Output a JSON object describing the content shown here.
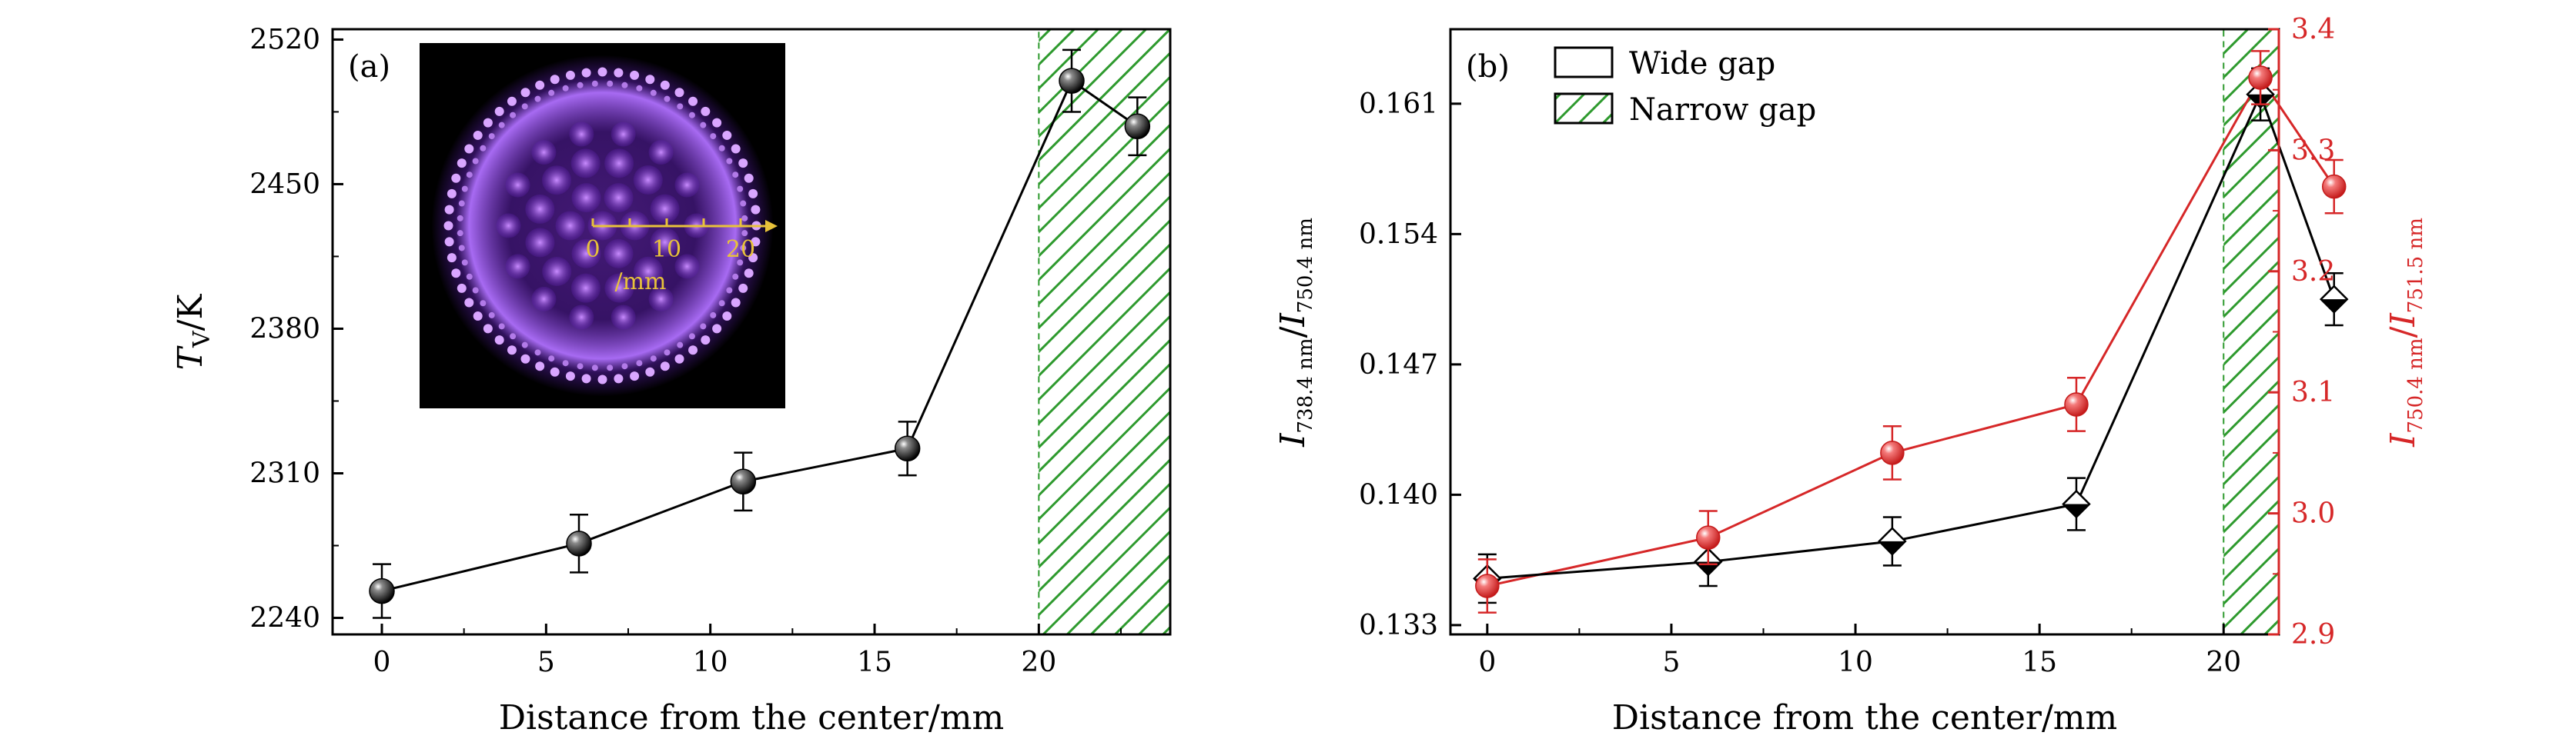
{
  "colors": {
    "black": "#000000",
    "red": "#d62728",
    "hatch_green": "#2e9a2e",
    "inset_bg": "#000000",
    "inset_glow": "#8a3ce0",
    "inset_arrow": "#e8c23a"
  },
  "chart_data": [
    {
      "type": "scatter",
      "panel_label": "(a)",
      "title": "",
      "xlabel": "Distance from the center/mm",
      "ylabel_main": "T",
      "ylabel_sub": "V",
      "ylabel_unit": "/K",
      "xlim": [
        -1.5,
        24
      ],
      "ylim": [
        2232,
        2525
      ],
      "x_ticks": [
        0,
        5,
        10,
        15,
        20
      ],
      "y_ticks": [
        2240,
        2310,
        2380,
        2450,
        2520
      ],
      "shaded_region": {
        "x": [
          20,
          24
        ],
        "pattern": "hatch",
        "color": "#2e9a2e"
      },
      "series": [
        {
          "marker": "sphere",
          "color": "#000000",
          "x": [
            0,
            6,
            11,
            16,
            21,
            23
          ],
          "y": [
            2253,
            2276,
            2306,
            2322,
            2500,
            2478
          ],
          "error": [
            13,
            14,
            14,
            13,
            15,
            14
          ]
        }
      ],
      "inset": {
        "description_icon": "plasma-pattern-image",
        "scale_ticks": [
          "0",
          "10",
          "20"
        ],
        "scale_unit": "/mm"
      }
    },
    {
      "type": "scatter",
      "panel_label": "(b)",
      "title": "",
      "xlabel": "Distance from the center/mm",
      "ylabel_left_main": "I",
      "ylabel_left_sub1": "738.4 nm",
      "ylabel_left_sub2": "750.4 nm",
      "ylabel_right_main": "I",
      "ylabel_right_sub1": "750.4 nm",
      "ylabel_right_sub2": "751.5 nm",
      "xlim": [
        -1,
        21.5
      ],
      "ylim_left": [
        0.1325,
        0.165
      ],
      "ylim_right": [
        2.9,
        3.4
      ],
      "x_ticks": [
        0,
        5,
        10,
        15,
        20
      ],
      "y_ticks_left": [
        "0.133",
        "0.140",
        "0.147",
        "0.154",
        "0.161"
      ],
      "y_ticks_left_values": [
        0.133,
        0.14,
        0.147,
        0.154,
        0.161
      ],
      "y_ticks_right": [
        "2.9",
        "3.0",
        "3.1",
        "3.2",
        "3.3",
        "3.4"
      ],
      "y_ticks_right_values": [
        2.9,
        3.0,
        3.1,
        3.2,
        3.3,
        3.4
      ],
      "shaded_region": {
        "x": [
          20,
          21.5
        ],
        "pattern": "hatch",
        "color": "#2e9a2e"
      },
      "legend": {
        "placement": "top-left",
        "entries": [
          {
            "label": "Wide gap",
            "swatch": "open-box"
          },
          {
            "label": "Narrow gap",
            "swatch": "hatch-box"
          }
        ]
      },
      "series": [
        {
          "axis": "left",
          "marker": "diamond",
          "color": "#000000",
          "x": [
            0,
            6,
            11,
            16,
            21,
            23
          ],
          "y": [
            0.1355,
            0.1364,
            0.1375,
            0.1395,
            0.1615,
            0.1505
          ],
          "error": [
            0.0013,
            0.0013,
            0.0013,
            0.0014,
            0.0014,
            0.0014
          ]
        },
        {
          "axis": "right",
          "marker": "sphere",
          "color": "#d62728",
          "x": [
            0,
            6,
            11,
            16,
            21,
            23
          ],
          "y": [
            2.94,
            2.98,
            3.05,
            3.09,
            3.36,
            3.27
          ],
          "error": [
            0.022,
            0.022,
            0.022,
            0.022,
            0.022,
            0.022
          ]
        }
      ]
    }
  ]
}
